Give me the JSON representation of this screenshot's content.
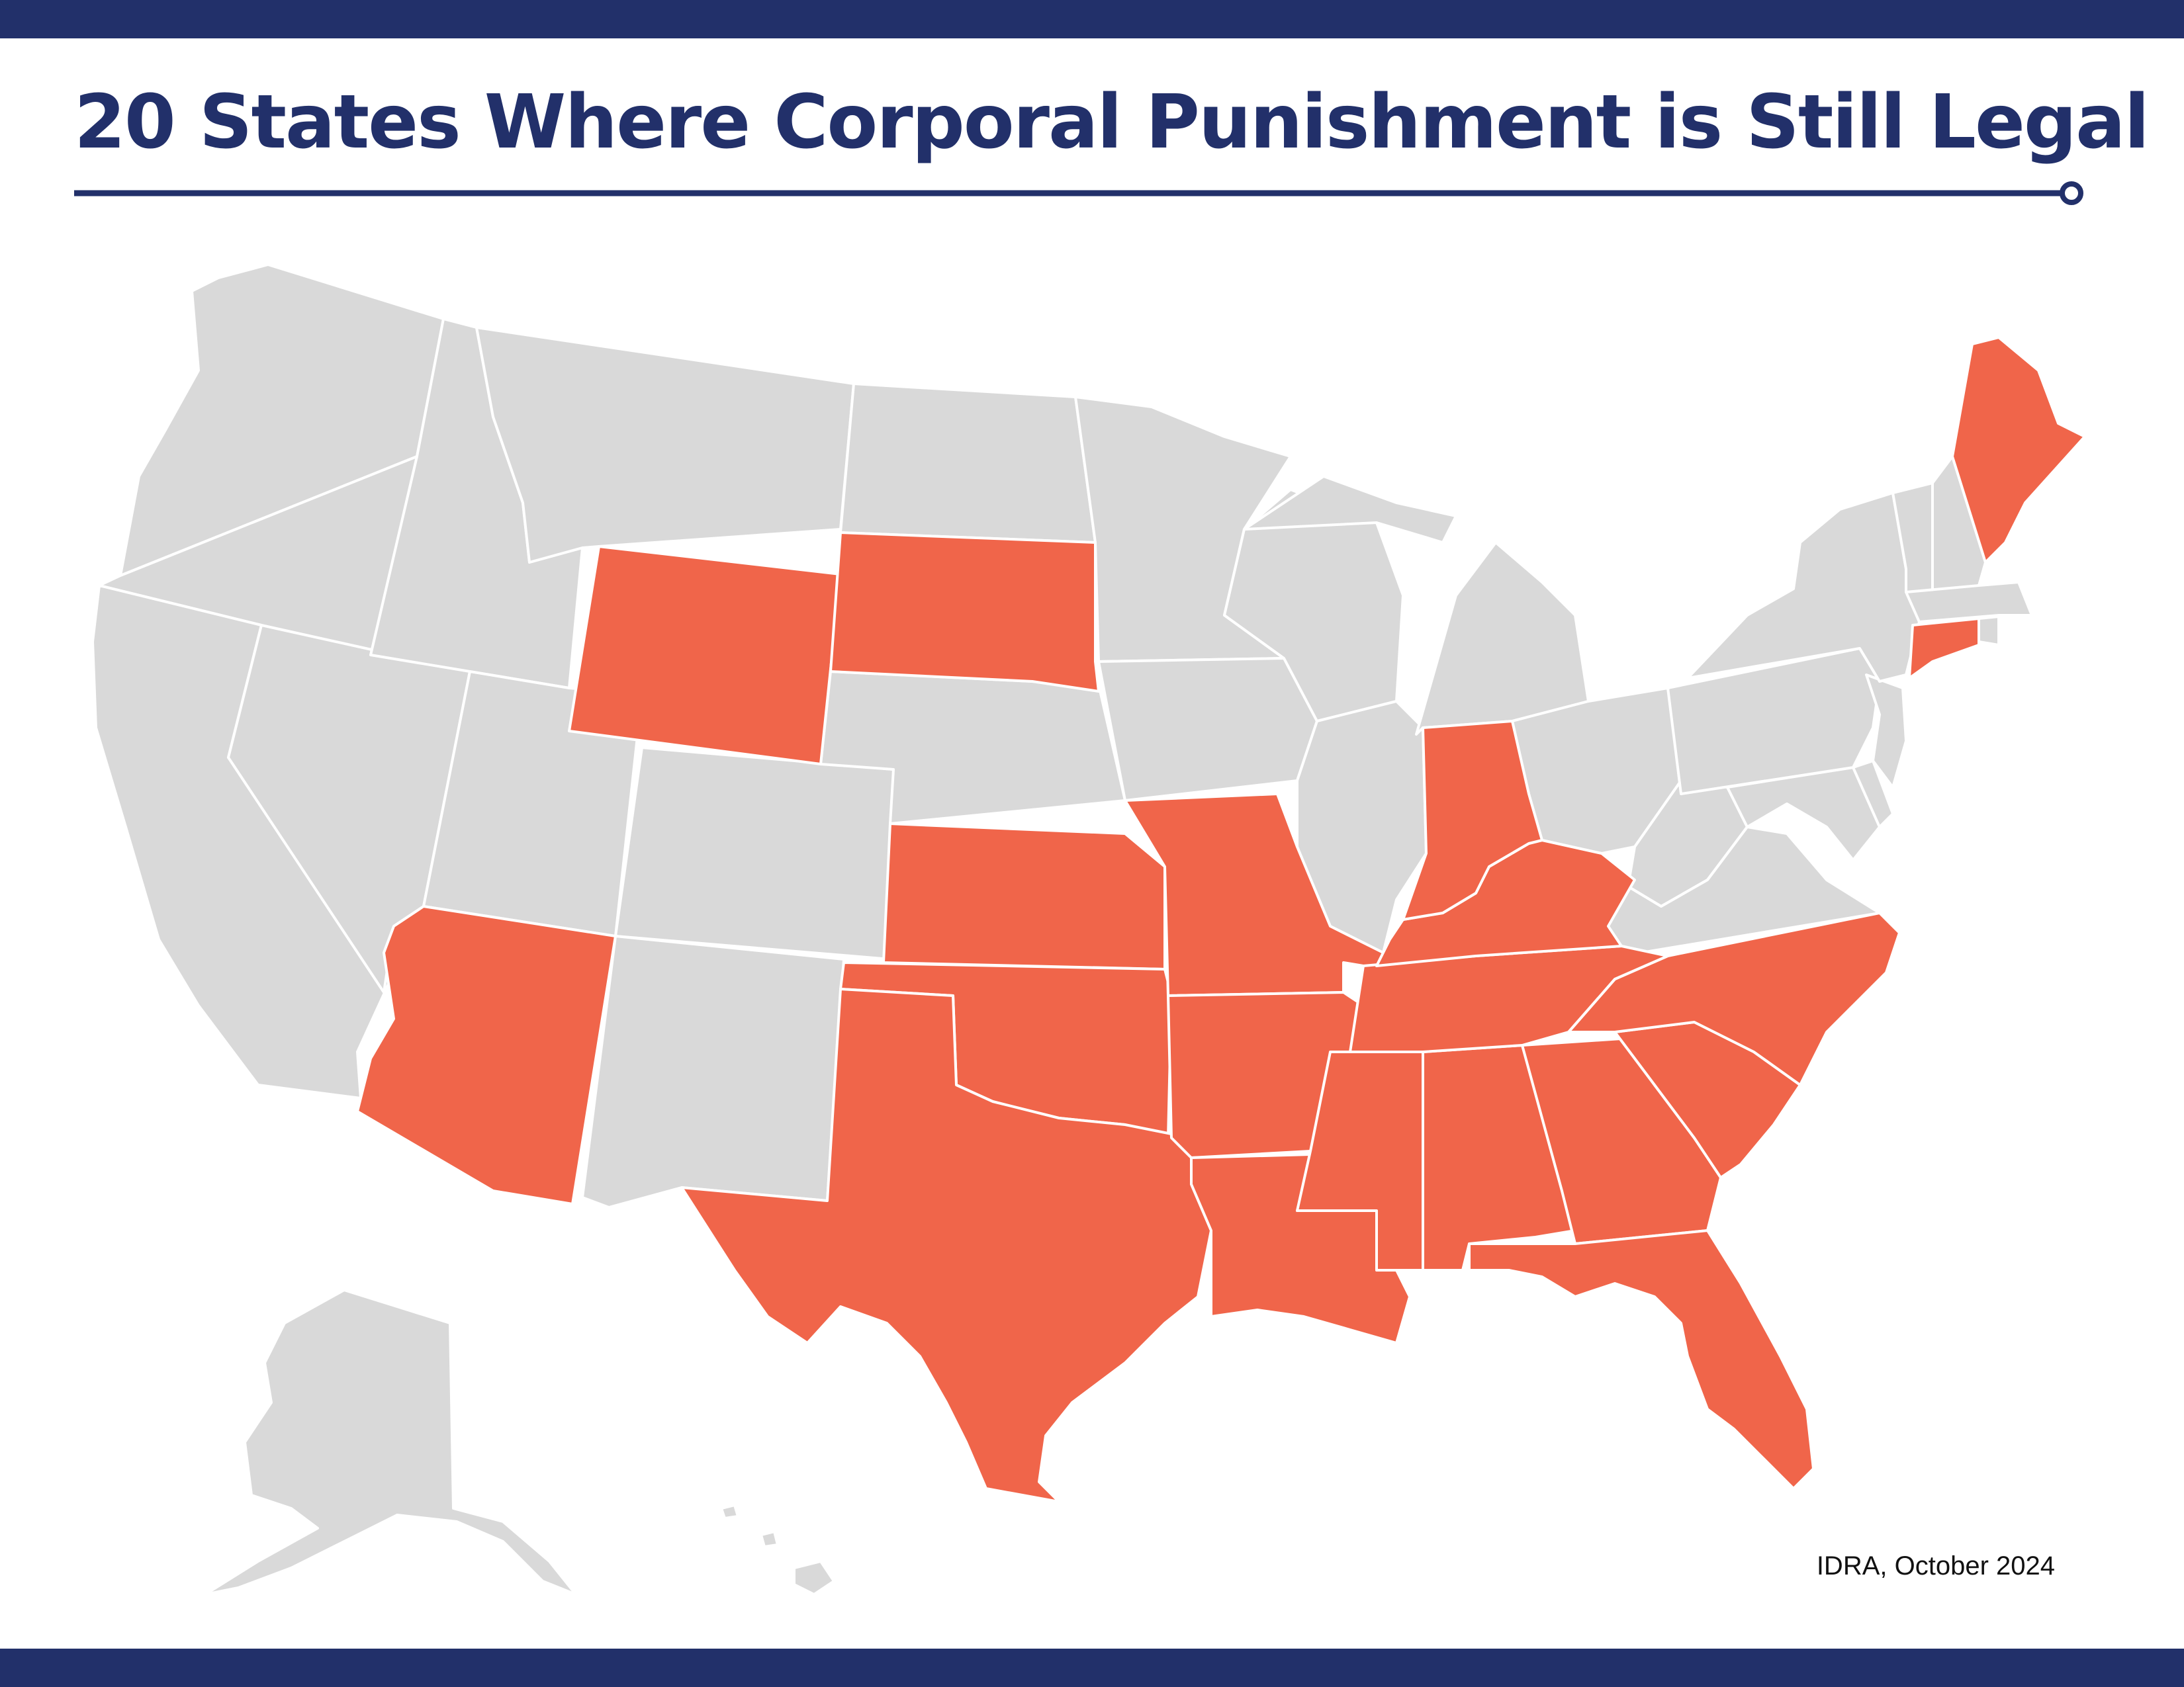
{
  "title": "20 States Where Corporal Punishment is Still Legal",
  "credit": "IDRA, October 2024",
  "colors": {
    "band": "#22306a",
    "title": "#22306a",
    "legal_state": "#f0654a",
    "other_state": "#d9d9d9",
    "border": "#ffffff"
  },
  "legal_states": [
    "Wyoming",
    "South Dakota",
    "Arizona",
    "Kansas",
    "Oklahoma",
    "Texas",
    "Missouri",
    "Arkansas",
    "Louisiana",
    "Mississippi",
    "Alabama",
    "Georgia",
    "Florida",
    "South Carolina",
    "North Carolina",
    "Tennessee",
    "Kentucky",
    "Indiana",
    "Maine",
    "Connecticut"
  ],
  "other_states": [
    "Washington",
    "Oregon",
    "California",
    "Nevada",
    "Idaho",
    "Montana",
    "Utah",
    "Colorado",
    "New Mexico",
    "North Dakota",
    "Nebraska",
    "Minnesota",
    "Iowa",
    "Wisconsin",
    "Illinois",
    "Michigan",
    "Ohio",
    "West Virginia",
    "Virginia",
    "Maryland",
    "Delaware",
    "Pennsylvania",
    "New Jersey",
    "New York",
    "Vermont",
    "New Hampshire",
    "Massachusetts",
    "Rhode Island",
    "Alaska",
    "Hawaii"
  ]
}
